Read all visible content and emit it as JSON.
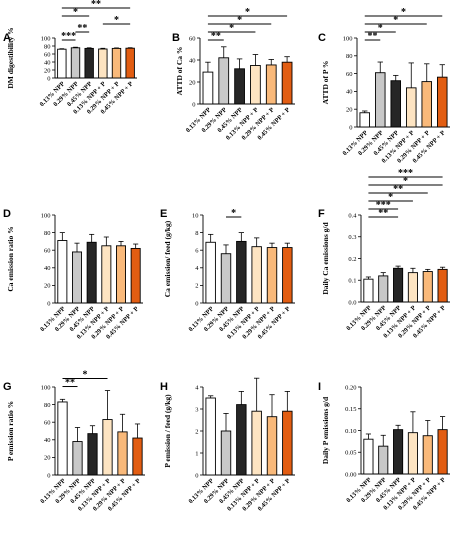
{
  "colors": {
    "0.13% NPP": "#ffffff",
    "0.29% NPP": "#c8c8c8",
    "0.45% NPP": "#262626",
    "0.13% NPP + P": "#fde4c2",
    "0.29% NPP + P": "#f9b97a",
    "0.45% NPP + P": "#e25d12"
  },
  "chart_data": [
    {
      "panel": "A",
      "type": "bar",
      "categories": [
        "0.13% NPP",
        "0.29% NPP",
        "0.45% NPP",
        "0.13% NPP + P",
        "0.29% NPP + P",
        "0.45% NPP + P"
      ],
      "values": [
        72,
        75.5,
        74,
        72.5,
        74,
        74.5
      ],
      "errors": [
        1.2,
        1.5,
        1.5,
        1.8,
        1.2,
        1.2
      ],
      "ylabel": "DM digestibility %",
      "ylim": [
        0,
        100
      ],
      "yticks": [
        0,
        20,
        40,
        60,
        80,
        100
      ],
      "significance": [
        {
          "from": 0,
          "to": 1,
          "label": "***"
        },
        {
          "from": 1,
          "to": 2,
          "label": "**"
        },
        {
          "from": 3,
          "to": 5,
          "label": "*"
        },
        {
          "from": 0,
          "to": 2,
          "label": "*"
        },
        {
          "from": 0,
          "to": 5,
          "label": "**"
        }
      ]
    },
    {
      "panel": "B",
      "type": "bar",
      "categories": [
        "0.13% NPP",
        "0.29% NPP",
        "0.45% NPP",
        "0.13% NPP + P",
        "0.29% NPP + P",
        "0.45% NPP + P"
      ],
      "values": [
        29,
        42,
        32,
        35,
        35.5,
        38
      ],
      "errors": [
        9,
        10,
        9,
        10,
        5,
        5
      ],
      "ylabel": "ATTD of Ca %",
      "ylim": [
        0,
        60
      ],
      "yticks": [
        0,
        20,
        40,
        60
      ],
      "significance": [
        {
          "from": 0,
          "to": 1,
          "label": "**"
        },
        {
          "from": 0,
          "to": 3,
          "label": "*"
        },
        {
          "from": 0,
          "to": 4,
          "label": "*"
        },
        {
          "from": 0,
          "to": 5,
          "label": "*"
        }
      ]
    },
    {
      "panel": "C",
      "type": "bar",
      "categories": [
        "0.13% NPP",
        "0.29% NPP",
        "0.45% NPP",
        "0.13% NPP + P",
        "0.29% NPP + P",
        "0.45% NPP + P"
      ],
      "values": [
        16,
        61,
        52,
        44,
        51,
        56
      ],
      "errors": [
        2,
        12,
        6,
        28,
        20,
        14
      ],
      "ylabel": "ATTD of P %",
      "ylim": [
        0,
        100
      ],
      "yticks": [
        0,
        20,
        40,
        60,
        80,
        100
      ],
      "significance": [
        {
          "from": 0,
          "to": 1,
          "label": "**"
        },
        {
          "from": 0,
          "to": 2,
          "label": "*"
        },
        {
          "from": 0,
          "to": 4,
          "label": "*"
        },
        {
          "from": 0,
          "to": 5,
          "label": "*"
        }
      ]
    },
    {
      "panel": "D",
      "type": "bar",
      "categories": [
        "0.13% NPP",
        "0.29% NPP",
        "0.45% NPP",
        "0.13% NPP + P",
        "0.29% NPP + P",
        "0.45% NPP + P"
      ],
      "values": [
        71,
        58,
        69,
        65,
        65,
        62
      ],
      "errors": [
        9,
        10,
        9,
        10,
        5,
        5
      ],
      "ylabel": "Ca emission ratio %",
      "ylim": [
        0,
        100
      ],
      "yticks": [
        0,
        20,
        40,
        60,
        80,
        100
      ],
      "significance": []
    },
    {
      "panel": "E",
      "type": "bar",
      "categories": [
        "0.13% NPP",
        "0.29% NPP",
        "0.45% NPP",
        "0.13% NPP + P",
        "0.29% NPP + P",
        "0.45% NPP + P"
      ],
      "values": [
        6.9,
        5.6,
        7.0,
        6.4,
        6.3,
        6.3
      ],
      "errors": [
        0.9,
        1.0,
        1.0,
        1.0,
        0.5,
        0.5
      ],
      "ylabel": "Ca emission/ feed (g/kg)",
      "ylim": [
        0,
        10
      ],
      "yticks": [
        0,
        2,
        4,
        6,
        8,
        10
      ],
      "significance": [
        {
          "from": 1,
          "to": 2,
          "label": "*"
        }
      ]
    },
    {
      "panel": "F",
      "type": "bar",
      "categories": [
        "0.13% NPP",
        "0.29% NPP",
        "0.45% NPP",
        "0.13% NPP + P",
        "0.29% NPP + P",
        "0.45% NPP + P"
      ],
      "values": [
        0.105,
        0.12,
        0.155,
        0.135,
        0.14,
        0.15
      ],
      "errors": [
        0.01,
        0.015,
        0.01,
        0.02,
        0.01,
        0.01
      ],
      "ylabel": "Daily Ca emissions g/d",
      "ylim": [
        0,
        0.4
      ],
      "yticks": [
        0.0,
        0.1,
        0.2,
        0.3,
        0.4
      ],
      "significance": [
        {
          "from": 0,
          "to": 2,
          "label": "**"
        },
        {
          "from": 0,
          "to": 2,
          "label": "***"
        },
        {
          "from": 0,
          "to": 3,
          "label": "*"
        },
        {
          "from": 0,
          "to": 4,
          "label": "**"
        },
        {
          "from": 0,
          "to": 5,
          "label": "*"
        },
        {
          "from": 0,
          "to": 5,
          "label": "***"
        }
      ]
    },
    {
      "panel": "G",
      "type": "bar",
      "categories": [
        "0.13% NPP",
        "0.29% NPP",
        "0.45% NPP",
        "0.13% NPP + P",
        "0.29% NPP + P",
        "0.45% NPP + P"
      ],
      "values": [
        83,
        38,
        47,
        63,
        49,
        42
      ],
      "errors": [
        3,
        16,
        9,
        33,
        20,
        16
      ],
      "ylabel": "P emission ratio %",
      "ylim": [
        0,
        100
      ],
      "yticks": [
        0,
        20,
        40,
        60,
        80,
        100
      ],
      "significance": [
        {
          "from": 0,
          "to": 1,
          "label": "**"
        },
        {
          "from": 0,
          "to": 3,
          "label": "*"
        }
      ]
    },
    {
      "panel": "H",
      "type": "bar",
      "categories": [
        "0.13% NPP",
        "0.29% NPP",
        "0.45% NPP",
        "0.13% NPP + P",
        "0.29% NPP + P",
        "0.45% NPP + P"
      ],
      "values": [
        3.5,
        2.0,
        3.2,
        2.9,
        2.65,
        2.9
      ],
      "errors": [
        0.1,
        0.8,
        0.6,
        1.5,
        1.0,
        0.9
      ],
      "ylabel": "P emission / feed (g/kg)",
      "ylim": [
        0,
        4
      ],
      "yticks": [
        0,
        1,
        2,
        3,
        4
      ],
      "significance": []
    },
    {
      "panel": "I",
      "type": "bar",
      "categories": [
        "0.13% NPP",
        "0.29% NPP",
        "0.45% NPP",
        "0.13% NPP + P",
        "0.29% NPP + P",
        "0.45% NPP + P"
      ],
      "values": [
        0.08,
        0.064,
        0.102,
        0.095,
        0.088,
        0.102
      ],
      "errors": [
        0.012,
        0.025,
        0.01,
        0.048,
        0.035,
        0.03
      ],
      "ylabel": "Daily P emissions g/d",
      "ylim": [
        0,
        0.2
      ],
      "yticks": [
        0.0,
        0.05,
        0.1,
        0.15,
        0.2
      ],
      "significance": []
    }
  ]
}
